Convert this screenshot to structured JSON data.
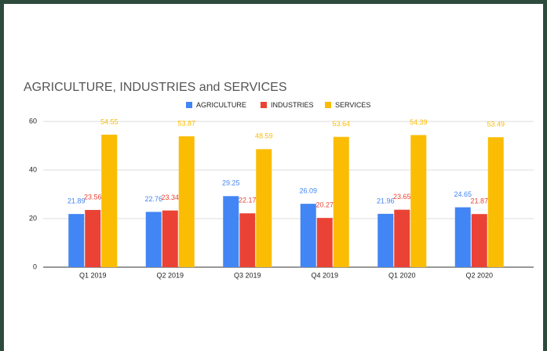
{
  "chart_data": {
    "type": "bar",
    "title": "AGRICULTURE, INDUSTRIES and SERVICES",
    "categories": [
      "Q1 2019",
      "Q2 2019",
      "Q3 2019",
      "Q4 2019",
      "Q1 2020",
      "Q2 2020"
    ],
    "series": [
      {
        "name": "AGRICULTURE",
        "color": "#4285f4",
        "values": [
          21.89,
          22.76,
          29.25,
          26.09,
          21.96,
          24.65
        ]
      },
      {
        "name": "INDUSTRIES",
        "color": "#ea4335",
        "values": [
          23.56,
          23.34,
          22.17,
          20.27,
          23.65,
          21.87
        ]
      },
      {
        "name": "SERVICES",
        "color": "#fbbc04",
        "values": [
          54.55,
          53.87,
          48.59,
          53.64,
          54.39,
          53.49
        ]
      }
    ],
    "ylim": [
      0,
      60
    ],
    "yticks": [
      0,
      20,
      40,
      60
    ],
    "grid": true,
    "legend": "top"
  }
}
